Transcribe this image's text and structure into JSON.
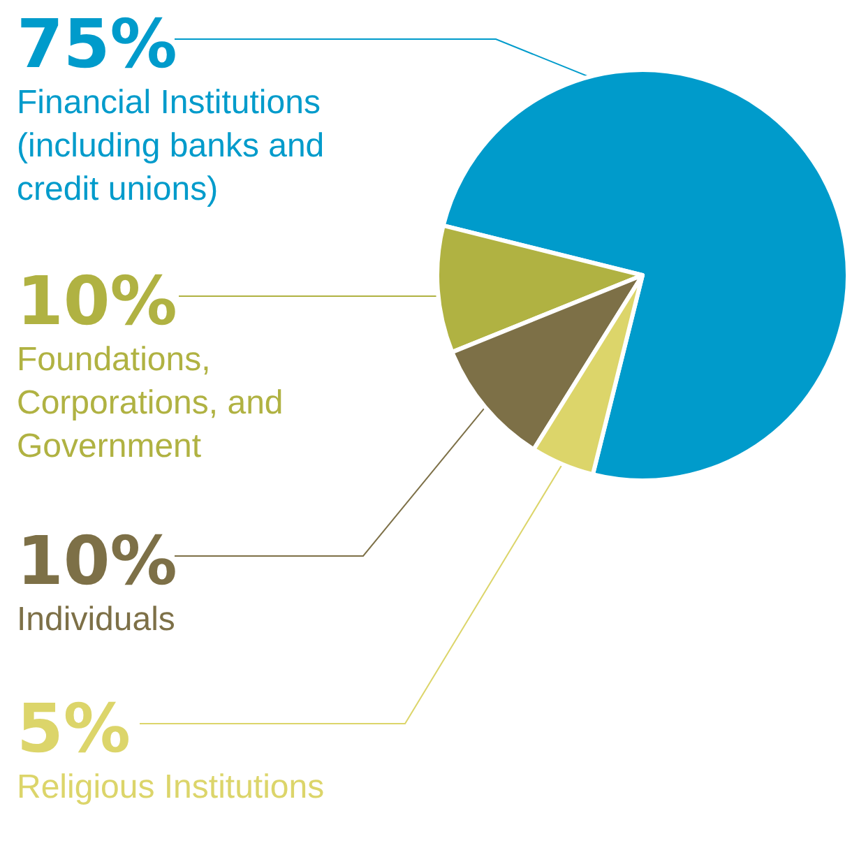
{
  "chart_data": {
    "type": "pie",
    "categories": [
      "Financial Institutions (including banks and credit unions)",
      "Foundations, Corporations, and Government",
      "Individuals",
      "Religious Institutions"
    ],
    "values": [
      75,
      10,
      10,
      5
    ],
    "colors": [
      "#009bcb",
      "#b0b242",
      "#7d7047",
      "#dcd56a"
    ],
    "value_labels": [
      "75%",
      "10%",
      "10%",
      "5%"
    ]
  }
}
